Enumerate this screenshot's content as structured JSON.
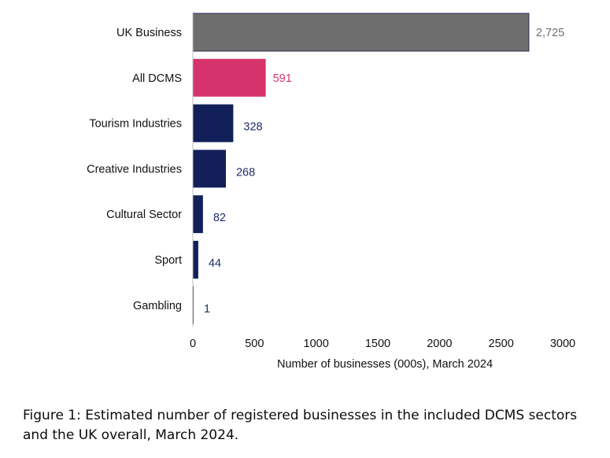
{
  "chart_data": {
    "type": "bar",
    "orientation": "horizontal",
    "categories": [
      "UK Business",
      "All DCMS",
      "Tourism Industries",
      "Creative Industries",
      "Cultural Sector",
      "Sport",
      "Gambling"
    ],
    "values": [
      2725,
      591,
      328,
      268,
      82,
      44,
      1
    ],
    "value_labels": [
      "2,725",
      "591",
      "328",
      "268",
      "82",
      "44",
      "1"
    ],
    "bar_colors": [
      "#6e6e6e",
      "#d6336c",
      "#12205a",
      "#12205a",
      "#12205a",
      "#12205a",
      "#12205a"
    ],
    "label_colors": [
      "#6e6e6e",
      "#d6336c",
      "#1f2d6b",
      "#1f2d6b",
      "#1f2d6b",
      "#1f2d6b",
      "#1f2d6b"
    ],
    "xlim": [
      0,
      3000
    ],
    "xticks": [
      0,
      500,
      1000,
      1500,
      2000,
      2500,
      3000
    ],
    "xlabel": "Number of businesses (000s), March 2024",
    "ylabel": "",
    "title": "",
    "grid": false,
    "legend": "none"
  },
  "caption": "Figure 1: Estimated number of registered businesses in the included DCMS sectors and the UK overall, March 2024."
}
